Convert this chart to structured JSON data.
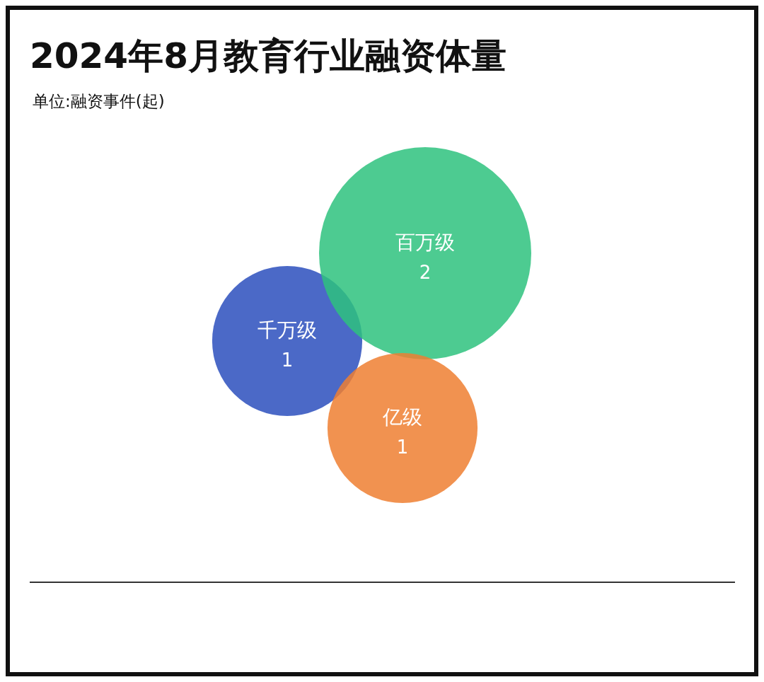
{
  "chart_data": {
    "type": "other",
    "title": "2024年8月教育行业融资体量",
    "subtitle": "单位:融资事件(起)",
    "categories": [
      "千万级",
      "百万级",
      "亿级"
    ],
    "values": [
      1,
      2,
      1
    ],
    "colors": [
      "#2b4fbd",
      "#2ec27e",
      "#ee7f31"
    ],
    "data_labels": true
  }
}
